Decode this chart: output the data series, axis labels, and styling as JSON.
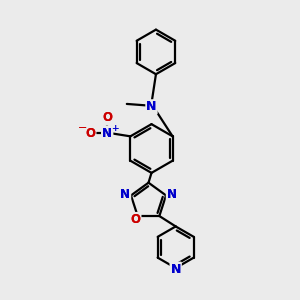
{
  "bg_color": "#ebebeb",
  "bond_color": "#000000",
  "n_color": "#0000cc",
  "o_color": "#cc0000",
  "line_width": 1.6,
  "figsize": [
    3.0,
    3.0
  ],
  "dpi": 100,
  "xlim": [
    0,
    10
  ],
  "ylim": [
    0,
    10
  ]
}
